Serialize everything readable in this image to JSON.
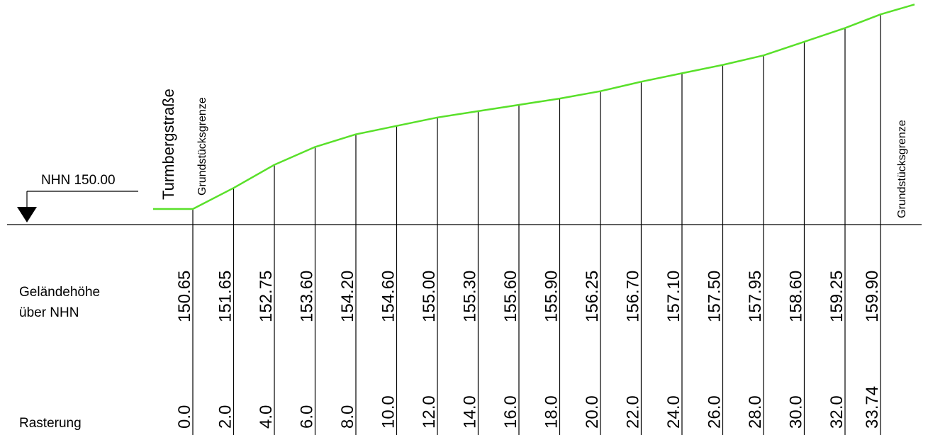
{
  "diagram": {
    "reference": {
      "label": "NHN 150.00"
    },
    "street_label": "Turmbergstraße",
    "boundary_left_label": "Grundstücksgrenze",
    "boundary_right_label": "Grundstücksgrenze",
    "row_labels": {
      "height_line1": "Geländehöhe",
      "height_line2": "über NHN",
      "grid": "Rasterung"
    },
    "colors": {
      "terrain": "#59e02a",
      "lines": "#000000"
    }
  },
  "chart_data": {
    "type": "line",
    "x": [
      0.0,
      2.0,
      4.0,
      6.0,
      8.0,
      10.0,
      12.0,
      14.0,
      16.0,
      18.0,
      20.0,
      22.0,
      24.0,
      26.0,
      28.0,
      30.0,
      32.0,
      33.74
    ],
    "x_labels": [
      "0.0",
      "2.0",
      "4.0",
      "6.0",
      "8.0",
      "10.0",
      "12.0",
      "14.0",
      "16.0",
      "18.0",
      "20.0",
      "22.0",
      "24.0",
      "26.0",
      "28.0",
      "30.0",
      "32.0",
      "33.74"
    ],
    "y": [
      150.65,
      151.65,
      152.75,
      153.6,
      154.2,
      154.6,
      155.0,
      155.3,
      155.6,
      155.9,
      156.25,
      156.7,
      157.1,
      157.5,
      157.95,
      158.6,
      159.25,
      159.9
    ],
    "y_labels": [
      "150.65",
      "151.65",
      "152.75",
      "153.60",
      "154.20",
      "154.60",
      "155.00",
      "155.30",
      "155.60",
      "155.90",
      "156.25",
      "156.70",
      "157.10",
      "157.50",
      "157.95",
      "158.60",
      "159.25",
      "159.90"
    ],
    "reference_level": 150.0
  }
}
